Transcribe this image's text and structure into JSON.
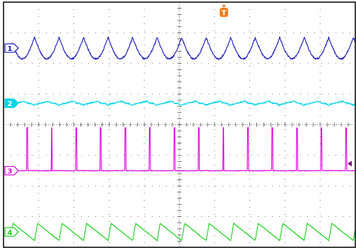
{
  "display": {
    "background": "#ffffff",
    "grid_color": "#555555",
    "frame_color": "#000000"
  },
  "trigger": {
    "label": "T",
    "color": "#f07f1e",
    "icon": "trigger-position-marker"
  },
  "channels": [
    {
      "id": "1",
      "label": "1",
      "color": "#1414b8",
      "waveform": "rectified-sine",
      "cycles": 14,
      "level_div": 1.5,
      "amplitude_div": 0.35
    },
    {
      "id": "2",
      "label": "2",
      "color": "#00d4e8",
      "waveform": "ripple-sawtooth",
      "cycles": 14,
      "level_div": 3.3,
      "amplitude_div": 0.12
    },
    {
      "id": "3",
      "label": "3",
      "color": "#e000e0",
      "waveform": "pulse-train",
      "cycles": 14,
      "level_div": 5.5,
      "amplitude_div": 1.4
    },
    {
      "id": "4",
      "label": "4",
      "color": "#14d014",
      "waveform": "sawtooth",
      "cycles": 14,
      "level_div": 7.5,
      "amplitude_div": 0.28
    }
  ],
  "trigger_level_marker": {
    "channel": "3",
    "icon": "trigger-level-arrow-icon"
  }
}
